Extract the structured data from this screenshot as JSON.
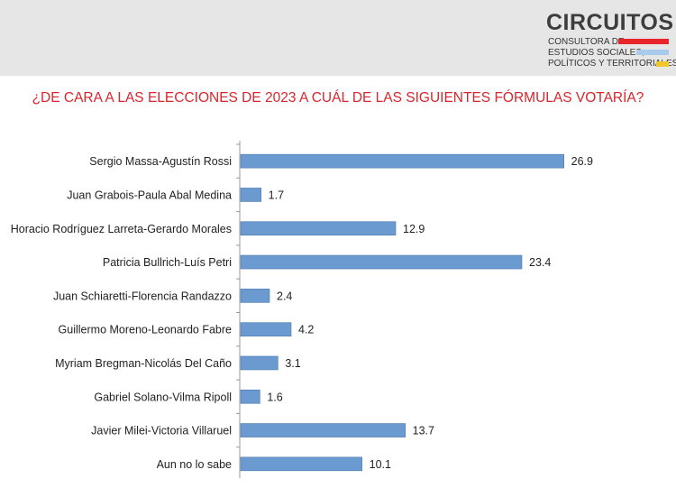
{
  "header": {
    "logo_title": "CIRCUITOS",
    "logo_line1": "CONSULTORA DE",
    "logo_line2": "ESTUDIOS SOCIALES,",
    "logo_line3": "POLÍTICOS Y TERRITORIALES",
    "logo_colors": [
      "#e8252a",
      "#a9cbeb",
      "#f2c72a"
    ],
    "band_color": "#e6e6e6"
  },
  "question": "¿DE CARA A LAS ELECCIONES DE 2023 A CUÁL DE LAS SIGUIENTES FÓRMULAS VOTARÍA?",
  "chart_data": {
    "type": "bar",
    "orientation": "horizontal",
    "categories": [
      "Sergio Massa-Agustín Rossi",
      "Juan Grabois-Paula Abal Medina",
      "Horacio Rodríguez Larreta-Gerardo Morales",
      "Patricia Bullrich-Luís Petri",
      "Juan Schiaretti-Florencia Randazzo",
      "Guillermo Moreno-Leonardo Fabre",
      "Myriam Bregman-Nicolás Del Caño",
      "Gabriel Solano-Vilma Ripoll",
      "Javier Milei-Victoria Villaruel",
      "Aun no lo sabe"
    ],
    "values": [
      26.9,
      1.7,
      12.9,
      23.4,
      2.4,
      4.2,
      3.1,
      1.6,
      13.7,
      10.1
    ],
    "value_labels": [
      "26.9",
      "1.7",
      "12.9",
      "23.4",
      "2.4",
      "4.2",
      "3.1",
      "1.6",
      "13.7",
      "10.1"
    ],
    "title": "¿DE CARA A LAS ELECCIONES DE 2023 A CUÁL DE LAS SIGUIENTES FÓRMULAS VOTARÍA?",
    "xlim": [
      0,
      30
    ],
    "grid": false,
    "bar_color": "#6a9ad0",
    "bar_stroke": "#4a78ad"
  }
}
